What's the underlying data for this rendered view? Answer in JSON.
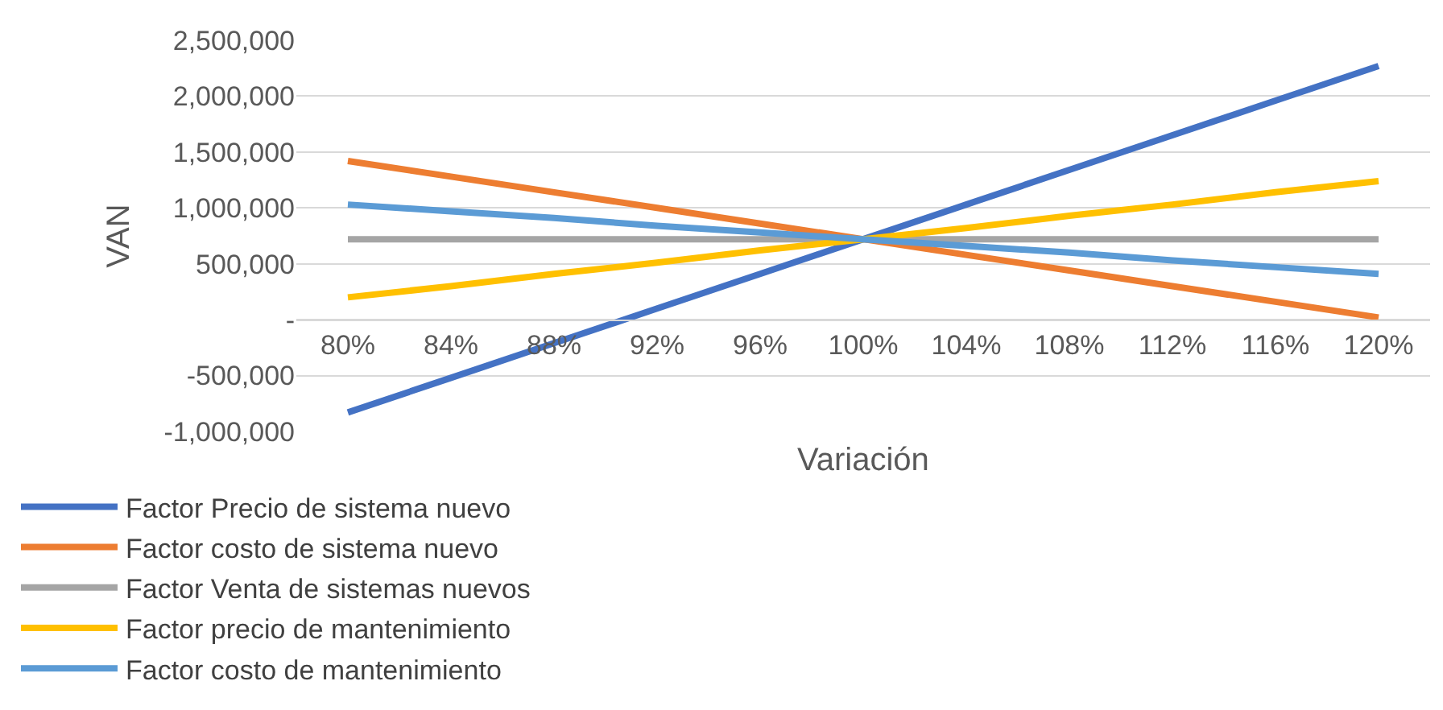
{
  "chart_data": {
    "type": "line",
    "xlabel": "Variación",
    "ylabel": "VAN",
    "categories": [
      "80%",
      "84%",
      "88%",
      "92%",
      "96%",
      "100%",
      "104%",
      "108%",
      "112%",
      "116%",
      "120%"
    ],
    "series": [
      {
        "name": "Factor Precio de sistema nuevo",
        "color": "#4472c4",
        "values": [
          -830000,
          -520000,
          -210000,
          100000,
          410000,
          720000,
          1030000,
          1340000,
          1650000,
          1960000,
          2270000
        ]
      },
      {
        "name": "Factor costo de sistema nuevo",
        "color": "#ed7d31",
        "values": [
          1420000,
          1280000,
          1140000,
          1000000,
          860000,
          720000,
          580000,
          440000,
          300000,
          160000,
          20000
        ]
      },
      {
        "name": "Factor Venta de sistemas nuevos",
        "color": "#a5a5a5",
        "values": [
          720000,
          720000,
          720000,
          720000,
          720000,
          720000,
          720000,
          720000,
          720000,
          720000,
          720000
        ]
      },
      {
        "name": "Factor precio de mantenimiento",
        "color": "#ffc000",
        "values": [
          200000,
          300000,
          410000,
          510000,
          620000,
          720000,
          820000,
          930000,
          1030000,
          1140000,
          1240000
        ]
      },
      {
        "name": "Factor costo de mantenimiento",
        "color": "#5b9bd5",
        "values": [
          1030000,
          970000,
          910000,
          840000,
          780000,
          720000,
          660000,
          600000,
          530000,
          470000,
          410000
        ]
      }
    ],
    "ylim": [
      -1000000,
      2500000
    ],
    "yticks": [
      {
        "value": -1000000,
        "label": "-1,000,000"
      },
      {
        "value": -500000,
        "label": "-500,000"
      },
      {
        "value": 0,
        "label": "-"
      },
      {
        "value": 500000,
        "label": "500,000"
      },
      {
        "value": 1000000,
        "label": "1,000,000"
      },
      {
        "value": 1500000,
        "label": "1,500,000"
      },
      {
        "value": 2000000,
        "label": "2,000,000"
      },
      {
        "value": 2500000,
        "label": "2,500,000"
      }
    ],
    "grid": "y",
    "legend": "bottom",
    "marker": "none",
    "line_style": "solid"
  }
}
